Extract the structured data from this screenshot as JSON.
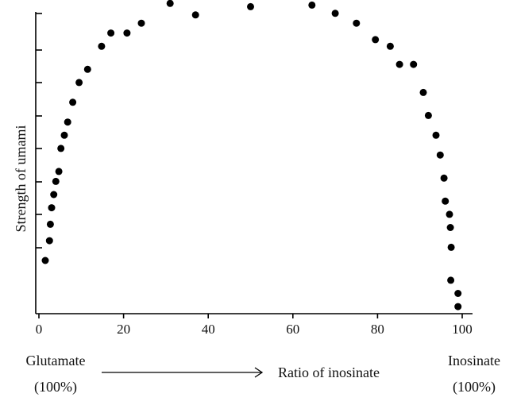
{
  "chart_data": {
    "type": "scatter",
    "title": "",
    "xlabel": "Ratio of inosinate",
    "ylabel": "Strength of umami",
    "xlim": [
      0,
      100
    ],
    "x_ticks": [
      "0",
      "20",
      "40",
      "60",
      "80",
      "100"
    ],
    "y_ticks_count": 8,
    "grid": false,
    "legend": "none",
    "left_endpoint": {
      "line1": "Glutamate",
      "line2": "(100%)"
    },
    "right_endpoint": {
      "line1": "Inosinate",
      "line2": "(100%)"
    },
    "points": [
      {
        "x": 1.5,
        "y": 0.0
      },
      {
        "x": 2.5,
        "y": 0.6
      },
      {
        "x": 2.7,
        "y": 1.1
      },
      {
        "x": 3.0,
        "y": 1.6
      },
      {
        "x": 3.5,
        "y": 2.0
      },
      {
        "x": 4.0,
        "y": 2.4
      },
      {
        "x": 4.7,
        "y": 2.7
      },
      {
        "x": 5.2,
        "y": 3.4
      },
      {
        "x": 6.0,
        "y": 3.8
      },
      {
        "x": 6.8,
        "y": 4.2
      },
      {
        "x": 8.0,
        "y": 4.8
      },
      {
        "x": 9.5,
        "y": 5.4
      },
      {
        "x": 11.5,
        "y": 5.8
      },
      {
        "x": 14.8,
        "y": 6.5
      },
      {
        "x": 17.0,
        "y": 6.9
      },
      {
        "x": 20.8,
        "y": 6.9
      },
      {
        "x": 24.2,
        "y": 7.2
      },
      {
        "x": 31.0,
        "y": 7.8
      },
      {
        "x": 37.0,
        "y": 7.45
      },
      {
        "x": 50.0,
        "y": 7.7
      },
      {
        "x": 64.5,
        "y": 7.75
      },
      {
        "x": 70.0,
        "y": 7.5
      },
      {
        "x": 75.0,
        "y": 7.2
      },
      {
        "x": 79.5,
        "y": 6.7
      },
      {
        "x": 83.0,
        "y": 6.5
      },
      {
        "x": 85.2,
        "y": 5.95
      },
      {
        "x": 88.5,
        "y": 5.95
      },
      {
        "x": 90.8,
        "y": 5.1
      },
      {
        "x": 92.0,
        "y": 4.4
      },
      {
        "x": 93.8,
        "y": 3.8
      },
      {
        "x": 94.8,
        "y": 3.2
      },
      {
        "x": 95.7,
        "y": 2.5
      },
      {
        "x": 96.0,
        "y": 1.8
      },
      {
        "x": 97.0,
        "y": 1.4
      },
      {
        "x": 97.2,
        "y": 1.0
      },
      {
        "x": 97.4,
        "y": 0.4
      },
      {
        "x": 97.3,
        "y": -0.6
      },
      {
        "x": 99.0,
        "y": -1.0
      },
      {
        "x": 99.0,
        "y": -1.4
      }
    ]
  }
}
